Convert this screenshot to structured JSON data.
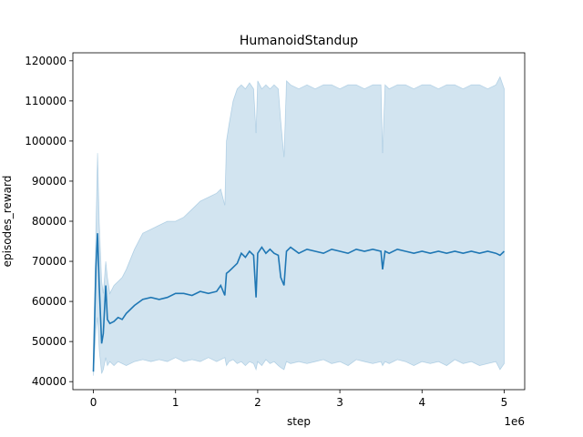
{
  "chart_data": {
    "type": "line",
    "title": "HumanoidStandup",
    "xlabel": "step",
    "ylabel": "episodes_reward",
    "x_offset_label": "1e6",
    "xlim": [
      -0.25,
      5.25
    ],
    "ylim": [
      38000,
      122000
    ],
    "x_ticks": [
      0,
      1,
      2,
      3,
      4,
      5
    ],
    "x_tick_labels": [
      "0",
      "1",
      "2",
      "3",
      "4",
      "5"
    ],
    "y_ticks": [
      40000,
      50000,
      60000,
      70000,
      80000,
      90000,
      100000,
      110000,
      120000
    ],
    "y_tick_labels": [
      "40000",
      "50000",
      "60000",
      "70000",
      "80000",
      "90000",
      "100000",
      "110000",
      "120000"
    ],
    "grid": false,
    "colors": {
      "line": "#1f77b4",
      "band": "#1f77b4"
    },
    "series": [
      {
        "x": [
          0,
          0.03,
          0.05,
          0.07,
          0.1,
          0.12,
          0.15,
          0.17,
          0.2,
          0.25,
          0.3,
          0.35,
          0.4,
          0.5,
          0.6,
          0.7,
          0.8,
          0.9,
          1.0,
          1.1,
          1.2,
          1.3,
          1.4,
          1.5,
          1.55,
          1.6,
          1.62,
          1.65,
          1.7,
          1.75,
          1.8,
          1.85,
          1.9,
          1.95,
          1.98,
          2.0,
          2.05,
          2.1,
          2.15,
          2.2,
          2.25,
          2.28,
          2.32,
          2.35,
          2.4,
          2.5,
          2.6,
          2.7,
          2.8,
          2.9,
          3.0,
          3.1,
          3.2,
          3.3,
          3.4,
          3.5,
          3.52,
          3.55,
          3.6,
          3.7,
          3.8,
          3.9,
          4.0,
          4.1,
          4.2,
          4.3,
          4.4,
          4.5,
          4.6,
          4.7,
          4.8,
          4.9,
          4.95,
          5.0
        ],
        "mean": [
          42500,
          68500,
          77000,
          64000,
          49500,
          52000,
          64000,
          55500,
          54500,
          55000,
          56000,
          55500,
          57000,
          59000,
          60500,
          61000,
          60500,
          61000,
          62000,
          62000,
          61500,
          62500,
          62000,
          62500,
          64000,
          61500,
          67000,
          67500,
          68500,
          69500,
          72000,
          71000,
          72500,
          71500,
          61000,
          72000,
          73500,
          72000,
          73000,
          72000,
          71500,
          66000,
          64000,
          72500,
          73500,
          72000,
          73000,
          72500,
          72000,
          73000,
          72500,
          72000,
          73000,
          72500,
          73000,
          72500,
          68000,
          72500,
          72000,
          73000,
          72500,
          72000,
          72500,
          72000,
          72500,
          72000,
          72500,
          72000,
          72500,
          72000,
          72500,
          72000,
          71500,
          72500
        ],
        "upper": [
          44000,
          78000,
          97000,
          80000,
          65000,
          62000,
          70000,
          66000,
          62000,
          64000,
          65000,
          66000,
          68000,
          73000,
          77000,
          78000,
          79000,
          80000,
          80000,
          81000,
          83000,
          85000,
          86000,
          87000,
          88000,
          84000,
          100000,
          104000,
          110000,
          113000,
          114000,
          113000,
          114500,
          113000,
          102000,
          115000,
          113000,
          114000,
          113000,
          114000,
          113000,
          105000,
          96000,
          115000,
          114000,
          113000,
          114000,
          113000,
          114000,
          114000,
          113000,
          114000,
          114000,
          113000,
          114000,
          114000,
          97000,
          114000,
          113000,
          114000,
          114000,
          113000,
          114000,
          114000,
          113000,
          114000,
          114000,
          113000,
          114000,
          114000,
          113000,
          114000,
          116000,
          113000
        ],
        "lower": [
          41500,
          53000,
          56000,
          48000,
          42000,
          43000,
          46000,
          44000,
          45000,
          44000,
          45000,
          44500,
          44000,
          45000,
          45500,
          45000,
          45500,
          45000,
          46000,
          45000,
          45500,
          45000,
          46000,
          45000,
          45500,
          46000,
          44000,
          45000,
          45500,
          44500,
          45000,
          44000,
          45000,
          44500,
          43000,
          45000,
          44000,
          45500,
          44500,
          45000,
          44000,
          43500,
          43000,
          45000,
          44500,
          45000,
          44500,
          45000,
          45500,
          44500,
          45000,
          44000,
          45500,
          45000,
          44500,
          45000,
          44000,
          45000,
          44500,
          45500,
          45000,
          44000,
          45000,
          44500,
          45000,
          44000,
          45500,
          44500,
          45000,
          44000,
          44500,
          45000,
          43000,
          44500
        ]
      }
    ]
  }
}
